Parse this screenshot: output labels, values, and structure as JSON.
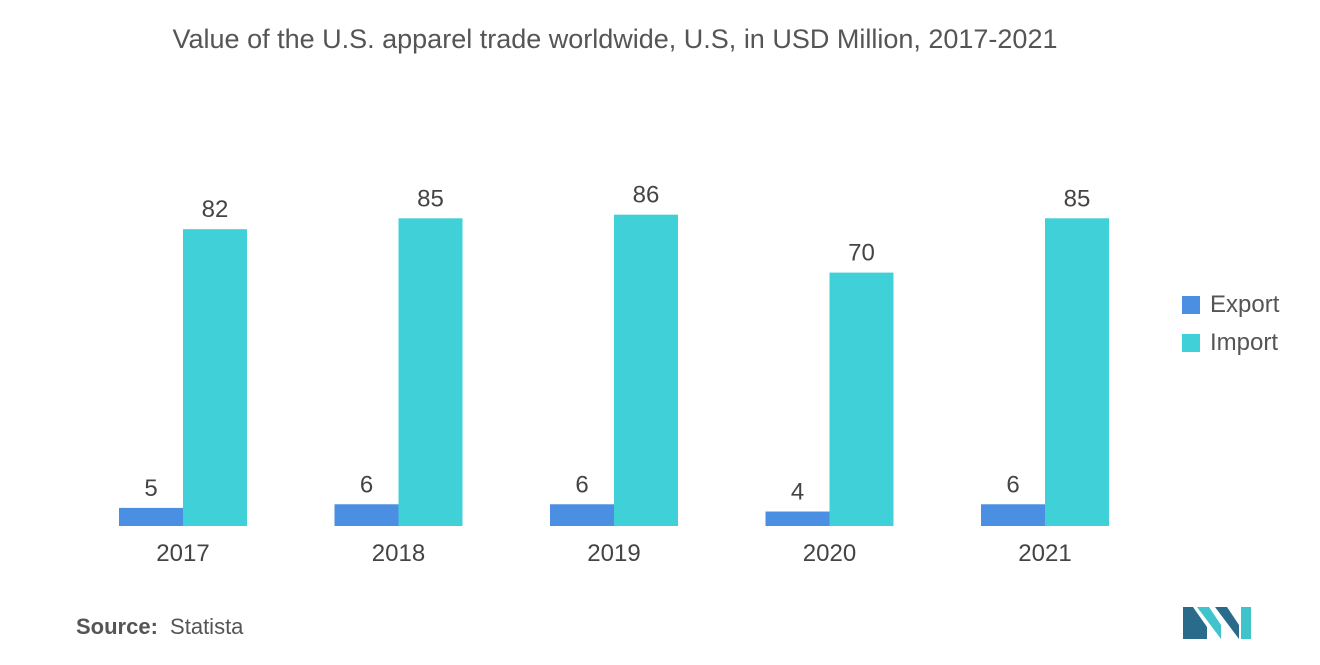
{
  "title": "Value of the U.S. apparel trade worldwide, U.S, in USD Million, 2017-2021",
  "source": {
    "label": "Source:",
    "value": "Statista"
  },
  "colors": {
    "export": "#4a8fe2",
    "import": "#40d0d8",
    "text": "#444444",
    "logo_dark": "#2a6a8a",
    "logo_light": "#40c4cc"
  },
  "logo": {
    "icon": "mordor-intelligence-logo-icon"
  },
  "chart_data": {
    "type": "bar",
    "title": "Value of the U.S. apparel trade worldwide, U.S, in USD Million, 2017-2021",
    "xlabel": "",
    "ylabel": "",
    "categories": [
      "2017",
      "2018",
      "2019",
      "2020",
      "2021"
    ],
    "series": [
      {
        "name": "Export",
        "values": [
          5,
          6,
          6,
          4,
          6
        ]
      },
      {
        "name": "Import",
        "values": [
          82,
          85,
          86,
          70,
          85
        ]
      }
    ],
    "ylim": [
      0,
      100
    ],
    "grid": false,
    "legend": "right",
    "data_labels": true
  }
}
